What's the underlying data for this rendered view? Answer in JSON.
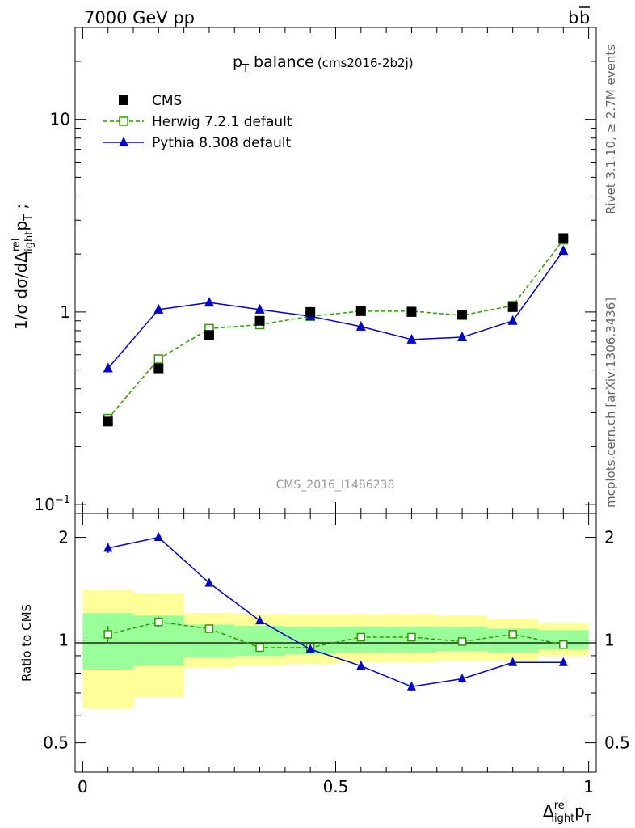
{
  "header": {
    "left_label": "7000 GeV pp",
    "right_label": "b",
    "right_label_overlined": "b",
    "side_label_top": "Rivet 3.1.10, ≥ 2.7M events",
    "side_label_bottom": "mcplots.cern.ch [arXiv:1306.3436]"
  },
  "chart_data": {
    "type": "line",
    "title_main": "p",
    "title_sub": "T",
    "title_rest": " balance",
    "title_tag": "(cms2016-2b2j)",
    "watermark": "CMS_2016_I1486238",
    "ylabel_main": "1/σ dσ/dΔ",
    "ylabel_sup": "rel",
    "ylabel_sub": "light",
    "ylabel_tail_main": "p",
    "ylabel_tail_sub": "T",
    "ylabel_tail_end": " ;",
    "xlabel_main": "Δ",
    "xlabel_sup": "rel",
    "xlabel_sub": "light",
    "xlabel_tail_main": "p",
    "xlabel_tail_sub": "T",
    "ratio_ylabel": "Ratio to CMS",
    "xlim": [
      -0.015,
      1.015
    ],
    "ylim": [
      0.09,
      30
    ],
    "ratio_ylim": [
      0.41,
      2.35
    ],
    "x": [
      0.05,
      0.15,
      0.25,
      0.35,
      0.45,
      0.55,
      0.65,
      0.75,
      0.85,
      0.95
    ],
    "bin_edges": [
      0.0,
      0.1,
      0.2,
      0.3,
      0.4,
      0.5,
      0.6,
      0.7,
      0.8,
      0.9,
      1.0
    ],
    "x_ticks": [
      {
        "v": 0,
        "label": "0"
      },
      {
        "v": 0.5,
        "label": "0.5"
      },
      {
        "v": 1,
        "label": "1"
      }
    ],
    "y_ticks": [
      {
        "v": 10,
        "label": "10"
      },
      {
        "v": 1,
        "label": "1"
      }
    ],
    "y_tick_exp": {
      "v": 0.1,
      "base": "10",
      "exp": "−1"
    },
    "ratio_ticks": [
      {
        "v": 2,
        "label": "2"
      },
      {
        "v": 1,
        "label": "1"
      },
      {
        "v": 0.5,
        "label": "0.5"
      }
    ],
    "series": [
      {
        "name": "CMS",
        "marker": "filled-square",
        "color": "#000000",
        "values": [
          0.27,
          0.51,
          0.76,
          0.9,
          1.0,
          1.01,
          1.0,
          0.97,
          1.06,
          2.42
        ]
      },
      {
        "name": "Herwig 7.2.1 default",
        "marker": "open-square",
        "color": "#339900",
        "dashed": true,
        "values": [
          0.28,
          0.57,
          0.82,
          0.86,
          0.95,
          1.01,
          1.01,
          0.96,
          1.08,
          2.37
        ]
      },
      {
        "name": "Pythia 8.308 default",
        "marker": "filled-triangle",
        "color": "#0000cc",
        "values": [
          0.51,
          1.03,
          1.12,
          1.03,
          0.95,
          0.84,
          0.72,
          0.74,
          0.9,
          2.08
        ]
      }
    ],
    "ratio_series": [
      {
        "name": "Herwig 7.2.1 default",
        "values": [
          1.04,
          1.13,
          1.08,
          0.95,
          0.95,
          1.02,
          1.02,
          0.99,
          1.04,
          0.97
        ],
        "errors": [
          0.06,
          0.04,
          0.02,
          0.02,
          0.01,
          0.01,
          0.01,
          0.01,
          0.01,
          0.01
        ]
      },
      {
        "name": "Pythia 8.308 default",
        "values": [
          1.86,
          2.0,
          1.47,
          1.14,
          0.94,
          0.84,
          0.73,
          0.77,
          0.86,
          0.86
        ],
        "errors": [
          0.06,
          0.02,
          0.01,
          0.01,
          0.01,
          0.01,
          0.02,
          0.02,
          0.01,
          0.01
        ]
      }
    ],
    "bands": {
      "green_lo": [
        0.82,
        0.84,
        0.89,
        0.9,
        0.91,
        0.92,
        0.92,
        0.93,
        0.92,
        0.94
      ],
      "green_hi": [
        1.2,
        1.18,
        1.11,
        1.1,
        1.09,
        1.09,
        1.09,
        1.09,
        1.08,
        1.07
      ],
      "yellow_lo": [
        0.63,
        0.68,
        0.83,
        0.84,
        0.85,
        0.86,
        0.86,
        0.87,
        0.87,
        0.9
      ],
      "yellow_hi": [
        1.4,
        1.37,
        1.2,
        1.19,
        1.19,
        1.19,
        1.19,
        1.18,
        1.15,
        1.12
      ]
    },
    "band_colors": {
      "green": "#99ff99",
      "yellow": "#ffff99"
    }
  }
}
